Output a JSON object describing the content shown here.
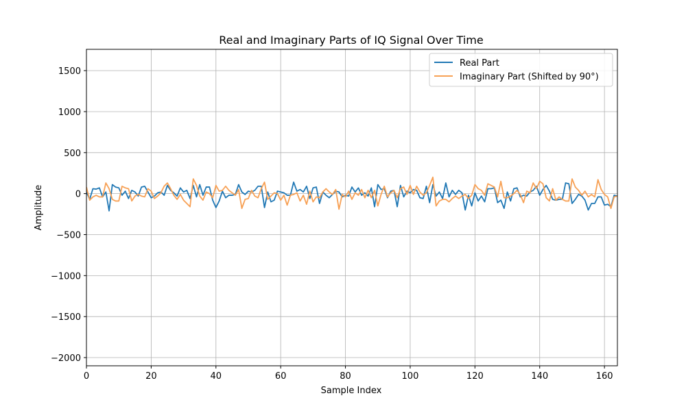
{
  "chart_data": {
    "type": "line",
    "title": "Real and Imaginary Parts of IQ Signal Over Time",
    "xlabel": "Sample Index",
    "ylabel": "Amplitude",
    "xlim": [
      0,
      164
    ],
    "ylim": [
      -2100,
      1760
    ],
    "xticks": [
      0,
      20,
      40,
      60,
      80,
      100,
      120,
      140,
      160
    ],
    "xtick_labels": [
      "0",
      "20",
      "40",
      "60",
      "80",
      "100",
      "120",
      "140",
      "160"
    ],
    "yticks": [
      -2000,
      -1500,
      -1000,
      -500,
      0,
      500,
      1000,
      1500
    ],
    "ytick_labels": [
      "−2000",
      "−1500",
      "−1000",
      "−500",
      "0",
      "500",
      "1000",
      "1500"
    ],
    "grid": true,
    "legend_position": "top-right",
    "series": [
      {
        "name": "Real Part",
        "color": "#1f77b4",
        "values": [
          20,
          -70,
          60,
          55,
          70,
          -40,
          20,
          -210,
          110,
          80,
          70,
          -20,
          30,
          -60,
          40,
          20,
          -30,
          80,
          90,
          20,
          -50,
          -30,
          10,
          20,
          -20,
          100,
          40,
          10,
          -30,
          70,
          20,
          40,
          -60,
          100,
          -40,
          110,
          -20,
          80,
          80,
          -80,
          -170,
          -90,
          30,
          -50,
          -20,
          -20,
          -10,
          110,
          20,
          -10,
          30,
          20,
          40,
          90,
          90,
          -170,
          20,
          -100,
          -80,
          30,
          20,
          10,
          -20,
          -20,
          140,
          30,
          50,
          20,
          90,
          -60,
          70,
          80,
          -120,
          20,
          -20,
          -50,
          -10,
          30,
          20,
          -40,
          -20,
          -30,
          80,
          20,
          70,
          -20,
          10,
          -30,
          70,
          -160,
          110,
          50,
          60,
          -50,
          30,
          40,
          -160,
          100,
          -40,
          30,
          10,
          50,
          40,
          -50,
          -60,
          90,
          -110,
          110,
          -30,
          20,
          -60,
          130,
          -40,
          40,
          -10,
          40,
          10,
          -200,
          -20,
          -150,
          10,
          -90,
          -30,
          -100,
          60,
          60,
          70,
          -110,
          -80,
          -180,
          20,
          -90,
          60,
          70,
          -40,
          -20,
          -30,
          20,
          40,
          90,
          -20,
          50,
          100,
          30,
          -70,
          -80,
          -70,
          -70,
          130,
          120,
          -120,
          -70,
          -10,
          -30,
          -80,
          -200,
          -120,
          -120,
          -40,
          -40,
          -140,
          -130,
          -160,
          -20,
          -30,
          -60,
          10
        ]
      },
      {
        "name": "Imaginary Part (Shifted by 90°)",
        "color": "#f7a054",
        "values": [
          80,
          -80,
          -40,
          -20,
          -40,
          -40,
          130,
          60,
          -70,
          -90,
          -90,
          90,
          70,
          60,
          -90,
          -30,
          -10,
          -30,
          -40,
          60,
          30,
          -60,
          -30,
          10,
          90,
          130,
          60,
          -20,
          -70,
          -10,
          -80,
          -120,
          -160,
          180,
          100,
          -30,
          -80,
          20,
          0,
          -50,
          100,
          30,
          40,
          90,
          40,
          10,
          -20,
          50,
          -180,
          -70,
          -60,
          40,
          -30,
          -50,
          60,
          140,
          -70,
          -30,
          10,
          0,
          -80,
          -20,
          -140,
          -20,
          -10,
          10,
          -90,
          -20,
          -130,
          30,
          -100,
          -40,
          -50,
          20,
          60,
          20,
          -10,
          50,
          -190,
          -10,
          -40,
          30,
          -70,
          10,
          -20,
          50,
          -50,
          40,
          -50,
          40,
          -150,
          -10,
          90,
          -40,
          10,
          40,
          -50,
          60,
          80,
          -10,
          100,
          -10,
          90,
          20,
          -20,
          10,
          100,
          200,
          -150,
          -90,
          -70,
          -70,
          -100,
          -60,
          -30,
          -60,
          -30,
          -10,
          -60,
          -20,
          110,
          60,
          40,
          -20,
          120,
          100,
          80,
          -40,
          150,
          -50,
          -50,
          -30,
          0,
          40,
          -10,
          -110,
          30,
          10,
          130,
          60,
          150,
          120,
          -50,
          -90,
          60,
          -80,
          -40,
          -70,
          -90,
          -90,
          180,
          80,
          40,
          -20,
          30,
          -40,
          -10,
          -40,
          170,
          50,
          -10,
          -40,
          -180,
          -40,
          -30,
          30
        ]
      }
    ]
  }
}
